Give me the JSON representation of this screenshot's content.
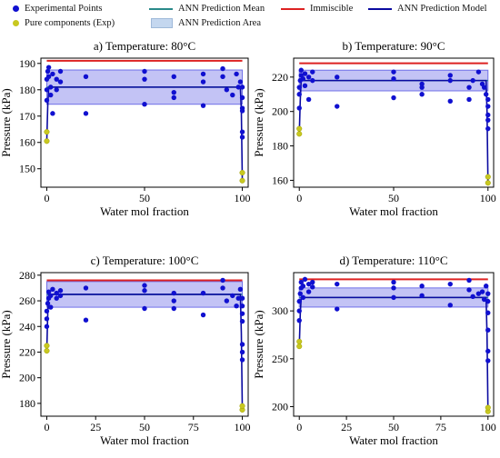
{
  "legend": {
    "items": [
      {
        "label": "Experimental Points",
        "kind": "dot",
        "color": "#1010d0"
      },
      {
        "label": "Pure components (Exp)",
        "kind": "dot",
        "color": "#c8c820"
      },
      {
        "label": "ANN Prediction Mean",
        "kind": "line",
        "color": "#2a8a8a"
      },
      {
        "label": "ANN Prediction Area",
        "kind": "area",
        "color": "#c4d7ef"
      },
      {
        "label": "Immiscible",
        "kind": "line",
        "color": "#dd2222"
      },
      {
        "label": "ANN Prediction Model",
        "kind": "line",
        "color": "#0a0aa0"
      }
    ]
  },
  "colors": {
    "points": "#1010d0",
    "pure": "#c8c820",
    "mean": "#2a8a8a",
    "band": "#7070e8",
    "immiscible": "#dd2222",
    "model": "#0a0aa0"
  },
  "chart_data": [
    {
      "type": "scatter",
      "title": "a) Temperature: 80°C",
      "xlabel": "Water mol fraction",
      "ylabel": "Pressure (kPa)",
      "xlim": [
        -3,
        103
      ],
      "ylim": [
        143,
        192
      ],
      "xticks": [
        0,
        50,
        100
      ],
      "yticks": [
        150,
        160,
        170,
        180,
        190
      ],
      "immiscible": 191,
      "mean": 181,
      "band": [
        174.5,
        187.5
      ],
      "pure": [
        [
          0,
          160.5
        ],
        [
          0,
          164
        ],
        [
          100,
          145.5
        ],
        [
          100,
          148.5
        ]
      ],
      "points": [
        [
          0,
          176
        ],
        [
          0,
          180
        ],
        [
          0,
          184
        ],
        [
          0.5,
          187
        ],
        [
          1,
          185
        ],
        [
          1,
          188.5
        ],
        [
          2,
          181
        ],
        [
          2,
          178
        ],
        [
          3,
          186
        ],
        [
          3,
          171
        ],
        [
          5,
          184
        ],
        [
          5,
          180
        ],
        [
          7,
          183
        ],
        [
          7,
          187
        ],
        [
          20,
          185
        ],
        [
          20,
          171
        ],
        [
          50,
          187
        ],
        [
          50,
          184
        ],
        [
          50,
          174.5
        ],
        [
          65,
          185
        ],
        [
          65,
          179
        ],
        [
          65,
          177
        ],
        [
          80,
          186
        ],
        [
          80,
          183
        ],
        [
          80,
          174
        ],
        [
          90,
          188
        ],
        [
          90,
          185
        ],
        [
          92,
          180
        ],
        [
          95,
          178
        ],
        [
          97,
          186
        ],
        [
          98,
          181
        ],
        [
          99,
          183
        ],
        [
          100,
          181
        ],
        [
          100,
          177
        ],
        [
          100,
          173
        ],
        [
          100,
          172
        ],
        [
          100,
          164
        ],
        [
          100,
          162
        ]
      ],
      "model": [
        [
          0,
          160.5
        ],
        [
          0.5,
          174
        ],
        [
          1,
          181
        ],
        [
          99,
          181
        ],
        [
          99.5,
          172
        ],
        [
          100,
          145.5
        ]
      ]
    },
    {
      "type": "scatter",
      "title": "b) Temperature: 90°C",
      "xlabel": "Water mol fraction",
      "ylabel": "Pressure (kPa)",
      "xlim": [
        -3,
        103
      ],
      "ylim": [
        156,
        231
      ],
      "xticks": [
        0,
        50,
        100
      ],
      "yticks": [
        160,
        180,
        200,
        220
      ],
      "immiscible": 228,
      "mean": 218,
      "band": [
        212,
        224
      ],
      "pure": [
        [
          0,
          187
        ],
        [
          0,
          190
        ],
        [
          100,
          158.5
        ],
        [
          100,
          162
        ]
      ],
      "points": [
        [
          0,
          202
        ],
        [
          0,
          210
        ],
        [
          0,
          214
        ],
        [
          0.5,
          218
        ],
        [
          1,
          221
        ],
        [
          1,
          224
        ],
        [
          2,
          219
        ],
        [
          3,
          215
        ],
        [
          3,
          222
        ],
        [
          5,
          207
        ],
        [
          5,
          220
        ],
        [
          7,
          218
        ],
        [
          7,
          223
        ],
        [
          20,
          220
        ],
        [
          20,
          203
        ],
        [
          50,
          223
        ],
        [
          50,
          219
        ],
        [
          50,
          208
        ],
        [
          65,
          216
        ],
        [
          65,
          214
        ],
        [
          65,
          210
        ],
        [
          80,
          221
        ],
        [
          80,
          218
        ],
        [
          80,
          206
        ],
        [
          90,
          214
        ],
        [
          90,
          207
        ],
        [
          92,
          218
        ],
        [
          95,
          223
        ],
        [
          97,
          216
        ],
        [
          98,
          214
        ],
        [
          99,
          210
        ],
        [
          100,
          207
        ],
        [
          100,
          203
        ],
        [
          100,
          198
        ],
        [
          100,
          195
        ],
        [
          100,
          190
        ]
      ],
      "model": [
        [
          0,
          187
        ],
        [
          0.5,
          206
        ],
        [
          1,
          218
        ],
        [
          99,
          218
        ],
        [
          99.5,
          200
        ],
        [
          100,
          158.5
        ]
      ]
    },
    {
      "type": "scatter",
      "title": "c) Temperature: 100°C",
      "xlabel": "Water mol fraction",
      "ylabel": "Pressure (kPa)",
      "xlim": [
        -3,
        103
      ],
      "ylim": [
        170,
        282
      ],
      "xticks": [
        0,
        25,
        50,
        75,
        100
      ],
      "yticks": [
        180,
        200,
        220,
        240,
        260,
        280
      ],
      "immiscible": 276,
      "mean": 265,
      "band": [
        255,
        275
      ],
      "pure": [
        [
          0,
          221
        ],
        [
          0,
          225
        ],
        [
          100,
          175
        ],
        [
          100,
          178
        ]
      ],
      "points": [
        [
          0,
          240
        ],
        [
          0,
          246
        ],
        [
          0,
          252
        ],
        [
          0.5,
          258
        ],
        [
          1,
          262
        ],
        [
          1,
          267
        ],
        [
          2,
          264
        ],
        [
          2,
          255
        ],
        [
          3,
          269
        ],
        [
          5,
          266
        ],
        [
          5,
          262
        ],
        [
          7,
          264
        ],
        [
          7,
          268
        ],
        [
          20,
          270
        ],
        [
          20,
          245
        ],
        [
          50,
          272
        ],
        [
          50,
          268
        ],
        [
          50,
          254
        ],
        [
          65,
          266
        ],
        [
          65,
          260
        ],
        [
          65,
          254
        ],
        [
          80,
          266
        ],
        [
          80,
          249
        ],
        [
          90,
          276
        ],
        [
          90,
          270
        ],
        [
          92,
          260
        ],
        [
          95,
          264
        ],
        [
          97,
          256
        ],
        [
          98,
          262
        ],
        [
          99,
          269
        ],
        [
          100,
          262
        ],
        [
          100,
          256
        ],
        [
          100,
          250
        ],
        [
          100,
          244
        ],
        [
          100,
          226
        ],
        [
          100,
          220
        ],
        [
          100,
          214
        ]
      ],
      "model": [
        [
          0,
          221
        ],
        [
          0.5,
          250
        ],
        [
          1,
          265
        ],
        [
          99,
          265
        ],
        [
          99.5,
          235
        ],
        [
          100,
          175
        ]
      ]
    },
    {
      "type": "scatter",
      "title": "d) Temperature: 110°C",
      "xlabel": "Water mol fraction",
      "ylabel": "Pressure (kPa)",
      "xlim": [
        -3,
        103
      ],
      "ylim": [
        190,
        340
      ],
      "xticks": [
        0,
        25,
        50,
        75,
        100
      ],
      "yticks": [
        200,
        250,
        300
      ],
      "immiscible": 333,
      "mean": 314,
      "band": [
        304,
        324
      ],
      "pure": [
        [
          0,
          263
        ],
        [
          0,
          268
        ],
        [
          100,
          195
        ],
        [
          100,
          199
        ]
      ],
      "points": [
        [
          0,
          290
        ],
        [
          0,
          300
        ],
        [
          0,
          310
        ],
        [
          0.5,
          318
        ],
        [
          1,
          324
        ],
        [
          1,
          330
        ],
        [
          2,
          326
        ],
        [
          2,
          314
        ],
        [
          3,
          333
        ],
        [
          5,
          328
        ],
        [
          5,
          320
        ],
        [
          7,
          325
        ],
        [
          7,
          330
        ],
        [
          20,
          328
        ],
        [
          20,
          302
        ],
        [
          50,
          330
        ],
        [
          50,
          324
        ],
        [
          50,
          314
        ],
        [
          65,
          326
        ],
        [
          65,
          316
        ],
        [
          80,
          328
        ],
        [
          80,
          306
        ],
        [
          90,
          332
        ],
        [
          90,
          322
        ],
        [
          92,
          315
        ],
        [
          95,
          318
        ],
        [
          97,
          320
        ],
        [
          98,
          312
        ],
        [
          99,
          326
        ],
        [
          100,
          318
        ],
        [
          100,
          310
        ],
        [
          100,
          298
        ],
        [
          100,
          280
        ],
        [
          100,
          258
        ],
        [
          100,
          248
        ]
      ],
      "model": [
        [
          0,
          263
        ],
        [
          0.5,
          296
        ],
        [
          1,
          314
        ],
        [
          99,
          314
        ],
        [
          99.5,
          275
        ],
        [
          100,
          195
        ]
      ]
    }
  ]
}
